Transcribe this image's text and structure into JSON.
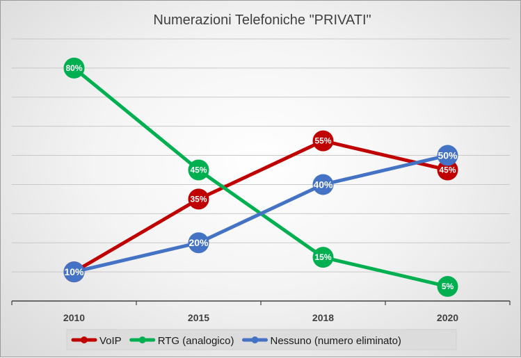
{
  "chart_data": {
    "type": "line",
    "title": "Numerazioni Telefoniche \"PRIVATI\"",
    "xlabel": "",
    "ylabel": "",
    "categories": [
      "2010",
      "2015",
      "2018",
      "2020"
    ],
    "ylim": [
      0,
      0.9
    ],
    "grid": true,
    "legend_position": "bottom",
    "series": [
      {
        "name": "VoIP",
        "color": "#c00000",
        "values": [
          0.1,
          0.35,
          0.55,
          0.45
        ],
        "labels": [
          "10%",
          "35%",
          "55%",
          "45%"
        ]
      },
      {
        "name": "RTG (analogico)",
        "color": "#00b050",
        "values": [
          0.8,
          0.45,
          0.15,
          0.05
        ],
        "labels": [
          "80%",
          "45%",
          "15%",
          "5%"
        ]
      },
      {
        "name": "Nessuno (numero eliminato)",
        "color": "#4472c4",
        "values": [
          0.1,
          0.2,
          0.4,
          0.5
        ],
        "labels": [
          "10%",
          "20%",
          "40%",
          "50%"
        ]
      }
    ]
  }
}
